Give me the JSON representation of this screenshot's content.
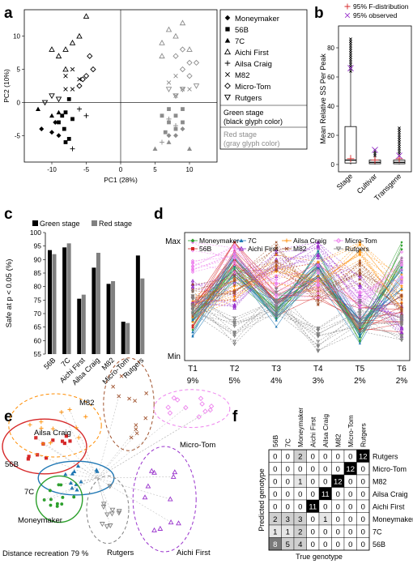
{
  "panel_letters": [
    "a",
    "b",
    "c",
    "d",
    "e",
    "f"
  ],
  "colors": {
    "moneymaker": "#2ca02c",
    "b56": "#d62728",
    "c7": "#1f77b4",
    "aichi": "#9932cc",
    "ailsa": "#ff8c00",
    "m82": "#a0522d",
    "microtom": "#ee82ee",
    "rutgers": "#808080"
  },
  "chart_data": [
    {
      "panel": "a",
      "type": "scatter",
      "xlabel": "PC1 (28%)",
      "ylabel": "PC2 (10%)",
      "xlim": [
        -14,
        14
      ],
      "ylim": [
        -9,
        14
      ],
      "xticks": [
        -10,
        -5,
        0,
        5,
        10
      ],
      "yticks": [
        -5,
        0,
        5,
        10
      ],
      "legend": [
        "Moneymaker",
        "56B",
        "7C",
        "Aichi First",
        "Ailsa Craig",
        "M82",
        "Micro-Tom",
        "Rutgers"
      ],
      "legend_note_green": [
        "Green stage",
        "(black glyph color)"
      ],
      "legend_note_red": [
        "Red stage",
        "(gray glyph color)"
      ],
      "series": [
        {
          "stage": "green",
          "genotype": "Moneymaker",
          "points": [
            [
              -11.5,
              -4
            ],
            [
              -9.5,
              -3
            ],
            [
              -10,
              -4.5
            ],
            [
              -9,
              -5
            ]
          ]
        },
        {
          "stage": "green",
          "genotype": "56B",
          "points": [
            [
              -8,
              -6
            ],
            [
              -7.5,
              -5.5
            ],
            [
              -9,
              -3
            ],
            [
              -8.5,
              -2
            ],
            [
              -7,
              -2.5
            ],
            [
              -8,
              -1.5
            ],
            [
              -7.5,
              0.5
            ],
            [
              -8.2,
              -4
            ]
          ]
        },
        {
          "stage": "green",
          "genotype": "7C",
          "points": [
            [
              -12,
              -1
            ],
            [
              -10,
              -2
            ],
            [
              -9,
              -1.5
            ]
          ]
        },
        {
          "stage": "green",
          "genotype": "Aichi First",
          "points": [
            [
              -9,
              7
            ],
            [
              -8,
              8
            ],
            [
              -7,
              9
            ],
            [
              -10,
              8
            ],
            [
              -5,
              13
            ],
            [
              -6,
              10
            ],
            [
              -8,
              5
            ]
          ]
        },
        {
          "stage": "green",
          "genotype": "Ailsa Craig",
          "points": [
            [
              -6,
              -1
            ],
            [
              -5,
              -2
            ],
            [
              -7,
              -7
            ]
          ]
        },
        {
          "stage": "green",
          "genotype": "M82",
          "points": [
            [
              -8,
              4
            ],
            [
              -7,
              5
            ],
            [
              -6,
              3.5
            ],
            [
              -8,
              2
            ],
            [
              -7,
              2
            ]
          ]
        },
        {
          "stage": "green",
          "genotype": "Micro-Tom",
          "points": [
            [
              -4,
              5
            ],
            [
              -5,
              4
            ],
            [
              -6,
              2.5
            ],
            [
              -5.5,
              3.5
            ],
            [
              -4.5,
              7
            ]
          ]
        },
        {
          "stage": "green",
          "genotype": "Rutgers",
          "points": [
            [
              -11,
              0
            ],
            [
              -9,
              0.5
            ],
            [
              -10,
              1
            ]
          ]
        },
        {
          "stage": "red",
          "genotype": "Moneymaker",
          "points": [
            [
              8,
              -5
            ],
            [
              9,
              -4
            ],
            [
              7,
              -5
            ]
          ]
        },
        {
          "stage": "red",
          "genotype": "56B",
          "points": [
            [
              7,
              -1
            ],
            [
              8,
              -2
            ],
            [
              6,
              -2
            ],
            [
              9,
              -3
            ],
            [
              7,
              -3
            ],
            [
              8,
              -4
            ],
            [
              6.5,
              -4.5
            ],
            [
              9,
              -1
            ]
          ]
        },
        {
          "stage": "red",
          "genotype": "7C",
          "points": [
            [
              5,
              -7
            ],
            [
              7,
              -6
            ],
            [
              10,
              -7
            ]
          ]
        },
        {
          "stage": "red",
          "genotype": "Aichi First",
          "points": [
            [
              6,
              9
            ],
            [
              8,
              10
            ],
            [
              7,
              11
            ],
            [
              9,
              12
            ],
            [
              6,
              7
            ],
            [
              10,
              8
            ]
          ]
        },
        {
          "stage": "red",
          "genotype": "Ailsa Craig",
          "points": [
            [
              7,
              -2.5
            ],
            [
              8,
              -3.5
            ],
            [
              6,
              -6
            ]
          ]
        },
        {
          "stage": "red",
          "genotype": "M82",
          "points": [
            [
              7,
              3
            ],
            [
              8,
              4
            ],
            [
              9,
              2
            ],
            [
              8,
              1
            ],
            [
              10,
              2
            ]
          ]
        },
        {
          "stage": "red",
          "genotype": "Micro-Tom",
          "points": [
            [
              9,
              5
            ],
            [
              10,
              6
            ],
            [
              8,
              7
            ],
            [
              9,
              8
            ],
            [
              10,
              4
            ],
            [
              11,
              6
            ]
          ]
        },
        {
          "stage": "red",
          "genotype": "Rutgers",
          "points": [
            [
              8,
              1
            ],
            [
              9,
              2
            ],
            [
              7,
              2
            ],
            [
              11,
              2.5
            ]
          ]
        }
      ]
    },
    {
      "panel": "b",
      "type": "box",
      "ylabel": "Mean Relative SS Per Peak",
      "ylim": [
        -5,
        95
      ],
      "yticks": [
        0,
        20,
        40,
        60,
        80
      ],
      "categories": [
        "Stage",
        "Cultivar",
        "Transgene"
      ],
      "legend": [
        "95% F-distribution",
        "95% observed"
      ],
      "box_stats": [
        {
          "q1": 1,
          "median": 3,
          "q3": 26,
          "whisker_low": 0,
          "whisker_high": 64,
          "outlier_max": 86
        },
        {
          "q1": 0.5,
          "median": 1.5,
          "q3": 3,
          "whisker_low": 0,
          "whisker_high": 6,
          "outlier_max": 10
        },
        {
          "q1": 0.5,
          "median": 1.5,
          "q3": 3,
          "whisker_low": 0,
          "whisker_high": 6,
          "outlier_max": 25
        }
      ],
      "f_distribution_95": [
        4,
        3,
        4
      ],
      "observed_95": [
        66,
        10,
        6
      ]
    },
    {
      "panel": "c",
      "type": "bar",
      "ylabel": "Safe at  p < 0.05  (%)",
      "ylim": [
        55,
        100
      ],
      "yticks": [
        55,
        60,
        65,
        70,
        75,
        80,
        85,
        90,
        95,
        100
      ],
      "categories": [
        "56B",
        "7C",
        "Aichi First",
        "Ailsa Craig",
        "M82",
        "Micro-Tom",
        "Rutgers"
      ],
      "series": [
        {
          "name": "Green stage",
          "values": [
            93.5,
            94.5,
            75.5,
            87,
            81,
            67,
            91.5
          ]
        },
        {
          "name": "Red stage",
          "values": [
            92,
            96,
            77,
            92.5,
            82,
            66.5,
            83
          ]
        }
      ]
    },
    {
      "panel": "d",
      "type": "line",
      "ylabels": [
        "Max",
        "Min"
      ],
      "categories": [
        "T1",
        "T2",
        "T3",
        "T4",
        "T5",
        "T6"
      ],
      "percent_labels": [
        "9%",
        "5%",
        "4%",
        "3%",
        "2%",
        "2%"
      ],
      "legend": [
        "Moneymaker",
        "56B",
        "7C",
        "Aichi First",
        "Ailsa Craig",
        "M82",
        "Micro-Tom",
        "Rutgers"
      ],
      "series": [
        {
          "name": "Moneymaker",
          "profiles": [
            [
              0.3,
              0.8,
              0.4,
              0.75,
              0.2,
              0.85
            ],
            [
              0.35,
              0.75,
              0.45,
              0.8,
              0.15,
              0.9
            ]
          ]
        },
        {
          "name": "56B",
          "profiles": [
            [
              0.4,
              0.95,
              0.5,
              0.7,
              0.3,
              0.3
            ],
            [
              0.35,
              0.85,
              0.45,
              0.6,
              0.35,
              0.4
            ]
          ]
        },
        {
          "name": "7C",
          "profiles": [
            [
              0.3,
              0.75,
              0.35,
              0.8,
              0.25,
              0.6
            ],
            [
              0.25,
              0.8,
              0.4,
              0.7,
              0.2,
              0.7
            ]
          ]
        },
        {
          "name": "Aichi First",
          "profiles": [
            [
              0.5,
              0.6,
              0.8,
              0.9,
              0.6,
              0.2
            ],
            [
              0.55,
              0.5,
              0.85,
              0.95,
              0.5,
              0.3
            ]
          ]
        },
        {
          "name": "Ailsa Craig",
          "profiles": [
            [
              0.4,
              0.6,
              0.8,
              0.7,
              0.95,
              0.6
            ],
            [
              0.45,
              0.55,
              0.75,
              0.6,
              0.9,
              0.5
            ]
          ]
        },
        {
          "name": "M82",
          "profiles": [
            [
              0.5,
              0.6,
              0.9,
              0.5,
              0.8,
              0.4
            ],
            [
              0.45,
              0.65,
              0.85,
              0.55,
              0.75,
              0.45
            ]
          ]
        },
        {
          "name": "Micro-Tom",
          "profiles": [
            [
              0.9,
              0.85,
              0.6,
              0.7,
              0.5,
              0.8
            ],
            [
              0.85,
              0.9,
              0.55,
              0.6,
              0.45,
              0.75
            ]
          ]
        },
        {
          "name": "Rutgers",
          "profiles": [
            [
              0.4,
              0.2,
              0.5,
              0.1,
              0.3,
              0.2
            ],
            [
              0.45,
              0.25,
              0.45,
              0.15,
              0.35,
              0.25
            ]
          ]
        }
      ]
    },
    {
      "panel": "e",
      "type": "scatter",
      "label": "Distance recreation   79 %",
      "clusters": [
        {
          "name": "56B",
          "cx": -2.5,
          "cy": 1.5,
          "rx": 2,
          "ry": 1.3
        },
        {
          "name": "Ailsa Craig",
          "cx": -2,
          "cy": 2.5,
          "rx": 2.2,
          "ry": 1.5
        },
        {
          "name": "M82",
          "cx": 1.5,
          "cy": 3.5,
          "rx": 1.2,
          "ry": 2.2
        },
        {
          "name": "Micro-Tom",
          "cx": 4.5,
          "cy": 3.3,
          "rx": 1.8,
          "ry": 0.9
        },
        {
          "name": "7C",
          "cx": -1,
          "cy": 0,
          "rx": 1.8,
          "ry": 0.8
        },
        {
          "name": "Moneymaker",
          "cx": -1.8,
          "cy": -1,
          "rx": 1.1,
          "ry": 1.1
        },
        {
          "name": "Rutgers",
          "cx": 0.5,
          "cy": -1.5,
          "rx": 1,
          "ry": 1.6
        },
        {
          "name": "Aichi First",
          "cx": 3.2,
          "cy": -1,
          "rx": 1.5,
          "ry": 2.5
        }
      ]
    },
    {
      "panel": "f",
      "type": "heatmap",
      "xlabel": "True genotype",
      "ylabel": "Predicted genotype",
      "x_categories": [
        "56B",
        "7C",
        "Moneymaker",
        "Aichi First",
        "Ailsa Craig",
        "M82",
        "Micro-Tom",
        "Rutgers"
      ],
      "y_categories": [
        "Rutgers",
        "Micro-Tom",
        "M82",
        "Ailsa Craig",
        "Aichi First",
        "Moneymaker",
        "7C",
        "56B"
      ],
      "values": [
        [
          0,
          0,
          2,
          0,
          0,
          0,
          0,
          12
        ],
        [
          0,
          0,
          0,
          0,
          0,
          0,
          12,
          0
        ],
        [
          0,
          0,
          1,
          0,
          0,
          12,
          0,
          0
        ],
        [
          0,
          0,
          0,
          0,
          11,
          0,
          0,
          0
        ],
        [
          0,
          0,
          0,
          11,
          0,
          0,
          0,
          0
        ],
        [
          2,
          3,
          3,
          0,
          1,
          0,
          0,
          0
        ],
        [
          1,
          1,
          2,
          0,
          0,
          0,
          0,
          0
        ],
        [
          8,
          5,
          4,
          0,
          0,
          0,
          0,
          0
        ]
      ]
    }
  ]
}
